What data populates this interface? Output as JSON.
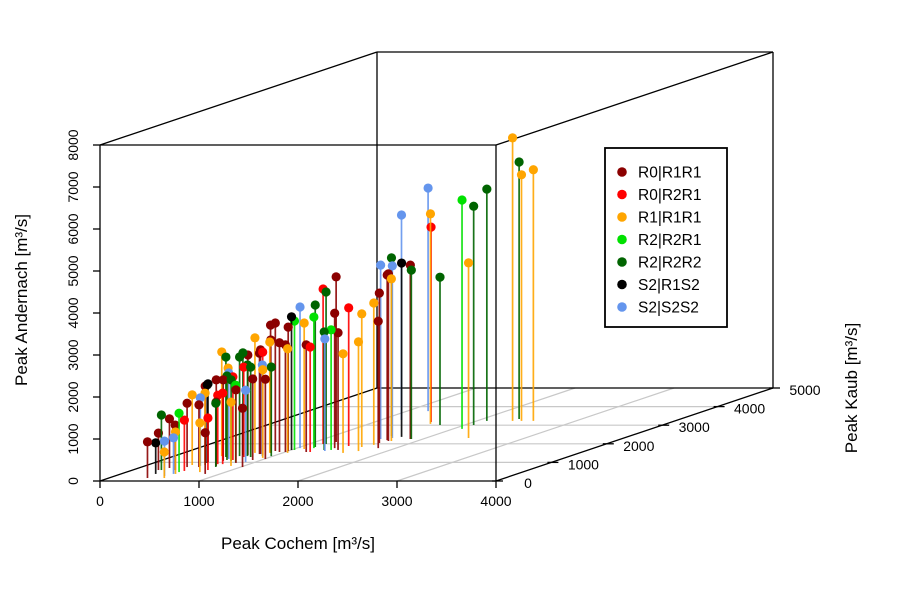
{
  "chart_data": {
    "type": "scatter",
    "subtype": "3d-stem-scatterplot",
    "title": "",
    "xlabel": "Peak Cochem [m³/s]",
    "ylabel": "Peak Kaub [m³/s]",
    "zlabel": "Peak Andernach [m³/s]",
    "xlim": [
      0,
      4000
    ],
    "ylim": [
      0,
      5000
    ],
    "zlim": [
      0,
      8000
    ],
    "xticks": [
      0,
      1000,
      2000,
      3000,
      4000
    ],
    "yticks": [
      0,
      1000,
      2000,
      3000,
      4000,
      5000
    ],
    "zticks": [
      0,
      1000,
      2000,
      3000,
      4000,
      5000,
      6000,
      7000,
      8000
    ],
    "grid": "floor-only",
    "grid_color": "#c8c8c8",
    "box_color": "#000000",
    "legend_position": "upper-right-inside",
    "series": [
      {
        "name": "R0|R1R1",
        "color": "#8B0000",
        "points": [
          [
            390,
            160,
            860
          ],
          [
            260,
            590,
            880
          ],
          [
            310,
            700,
            1170
          ],
          [
            430,
            590,
            1070
          ],
          [
            460,
            750,
            1520
          ],
          [
            580,
            750,
            1480
          ],
          [
            520,
            970,
            1830
          ],
          [
            720,
            810,
            1520
          ],
          [
            640,
            1080,
            1930
          ],
          [
            830,
            970,
            1740
          ],
          [
            1020,
            750,
            1400
          ],
          [
            910,
            1130,
            1930
          ],
          [
            1010,
            1180,
            1900
          ],
          [
            850,
            380,
            980
          ],
          [
            850,
            1560,
            3020
          ],
          [
            810,
            1450,
            2480
          ],
          [
            880,
            1510,
            2690
          ],
          [
            570,
            1080,
            1930
          ],
          [
            870,
            1610,
            3050
          ],
          [
            940,
            1560,
            2600
          ],
          [
            1000,
            1560,
            2550
          ],
          [
            710,
            1400,
            2380
          ],
          [
            800,
            1450,
            2400
          ],
          [
            1000,
            1610,
            2950
          ],
          [
            1210,
            1560,
            2550
          ],
          [
            1210,
            2100,
            3930
          ],
          [
            1380,
            1770,
            3210
          ],
          [
            1470,
            1670,
            2790
          ],
          [
            1680,
            2040,
            3570
          ],
          [
            1670,
            2200,
            3930
          ],
          [
            1820,
            1770,
            3020
          ],
          [
            1710,
            2150,
            3980
          ],
          [
            1870,
            2260,
            4140
          ]
        ]
      },
      {
        "name": "R0|R2R1",
        "color": "#FF0000",
        "points": [
          [
            550,
            540,
            1210
          ],
          [
            760,
            590,
            1240
          ],
          [
            680,
            910,
            1640
          ],
          [
            730,
            910,
            1690
          ],
          [
            710,
            1130,
            1980
          ],
          [
            860,
            1400,
            2450
          ],
          [
            730,
            1290,
            2140
          ],
          [
            1250,
            1560,
            2500
          ],
          [
            1140,
            1990,
            3690
          ],
          [
            1460,
            1880,
            3290
          ],
          [
            1570,
            3170,
            4640
          ]
        ]
      },
      {
        "name": "R1|R1R1",
        "color": "#FFA500",
        "points": [
          [
            560,
            160,
            620
          ],
          [
            550,
            380,
            1000
          ],
          [
            450,
            860,
            1670
          ],
          [
            740,
            480,
            1170
          ],
          [
            580,
            860,
            1710
          ],
          [
            950,
            1240,
            2100
          ],
          [
            870,
            810,
            1520
          ],
          [
            480,
            1340,
            2480
          ],
          [
            600,
            1240,
            2140
          ],
          [
            720,
            1510,
            2740
          ],
          [
            870,
            1510,
            2640
          ],
          [
            1050,
            1510,
            2480
          ],
          [
            1100,
            1720,
            3000
          ],
          [
            1620,
            1830,
            3170
          ],
          [
            1710,
            1610,
            2600
          ],
          [
            1610,
            1510,
            2360
          ],
          [
            1680,
            1940,
            3380
          ],
          [
            1740,
            2150,
            3860
          ],
          [
            1620,
            3070,
            5000
          ],
          [
            2430,
            2310,
            4170
          ],
          [
            2360,
            3230,
            6740
          ],
          [
            2450,
            3230,
            5860
          ],
          [
            2570,
            3230,
            5980
          ]
        ]
      },
      {
        "name": "R2|R2R1",
        "color": "#00E100",
        "points": [
          [
            530,
            480,
            1400
          ],
          [
            800,
            1020,
            1830
          ],
          [
            1030,
            1670,
            3070
          ],
          [
            1170,
            1770,
            3120
          ],
          [
            1400,
            1670,
            2860
          ],
          [
            2090,
            2800,
            5450
          ]
        ]
      },
      {
        "name": "R2|R2R2",
        "color": "#006400",
        "points": [
          [
            290,
            590,
            1310
          ],
          [
            750,
            750,
            1520
          ],
          [
            650,
            1130,
            2000
          ],
          [
            550,
            1290,
            2380
          ],
          [
            660,
            1400,
            2430
          ],
          [
            740,
            1340,
            2170
          ],
          [
            720,
            1080,
            1930
          ],
          [
            980,
            1340,
            2120
          ],
          [
            660,
            1340,
            2360
          ],
          [
            800,
            1290,
            2140
          ],
          [
            1150,
            1830,
            3380
          ],
          [
            1170,
            1990,
            3620
          ],
          [
            1330,
            1670,
            2810
          ],
          [
            1880,
            2260,
            4020
          ],
          [
            1750,
            3010,
            3520
          ],
          [
            1590,
            2420,
            4240
          ],
          [
            2090,
            3010,
            5210
          ],
          [
            2100,
            3230,
            5520
          ],
          [
            2370,
            3330,
            6120
          ]
        ]
      },
      {
        "name": "S2|R1S2",
        "color": "#000000",
        "points": [
          [
            350,
            380,
            740
          ],
          [
            520,
            1020,
            1860
          ],
          [
            540,
            970,
            1860
          ],
          [
            1000,
            1670,
            3170
          ],
          [
            1720,
            2370,
            4140
          ]
        ]
      },
      {
        "name": "S2|S2S2",
        "color": "#6495ED",
        "points": [
          [
            500,
            270,
            830
          ],
          [
            530,
            380,
            860
          ],
          [
            560,
            810,
            1620
          ],
          [
            640,
            1180,
            2050
          ],
          [
            900,
            1020,
            1710
          ],
          [
            890,
            1340,
            2170
          ],
          [
            1030,
            1770,
            3360
          ],
          [
            1370,
            1610,
            2670
          ],
          [
            1570,
            2260,
            4140
          ],
          [
            1660,
            2310,
            4100
          ],
          [
            1210,
            3280,
            4880
          ],
          [
            1210,
            3760,
            5310
          ]
        ]
      }
    ]
  },
  "legend": {
    "items": [
      {
        "label": "R0|R1R1",
        "color": "#8B0000"
      },
      {
        "label": "R0|R2R1",
        "color": "#FF0000"
      },
      {
        "label": "R1|R1R1",
        "color": "#FFA500"
      },
      {
        "label": "R2|R2R1",
        "color": "#00E100"
      },
      {
        "label": "R2|R2R2",
        "color": "#006400"
      },
      {
        "label": "S2|R1S2",
        "color": "#000000"
      },
      {
        "label": "S2|S2S2",
        "color": "#6495ED"
      }
    ]
  },
  "axes": {
    "x_title": "Peak Cochem [m³/s]",
    "y_title": "Peak Kaub [m³/s]",
    "z_title": "Peak Andernach [m³/s]"
  }
}
